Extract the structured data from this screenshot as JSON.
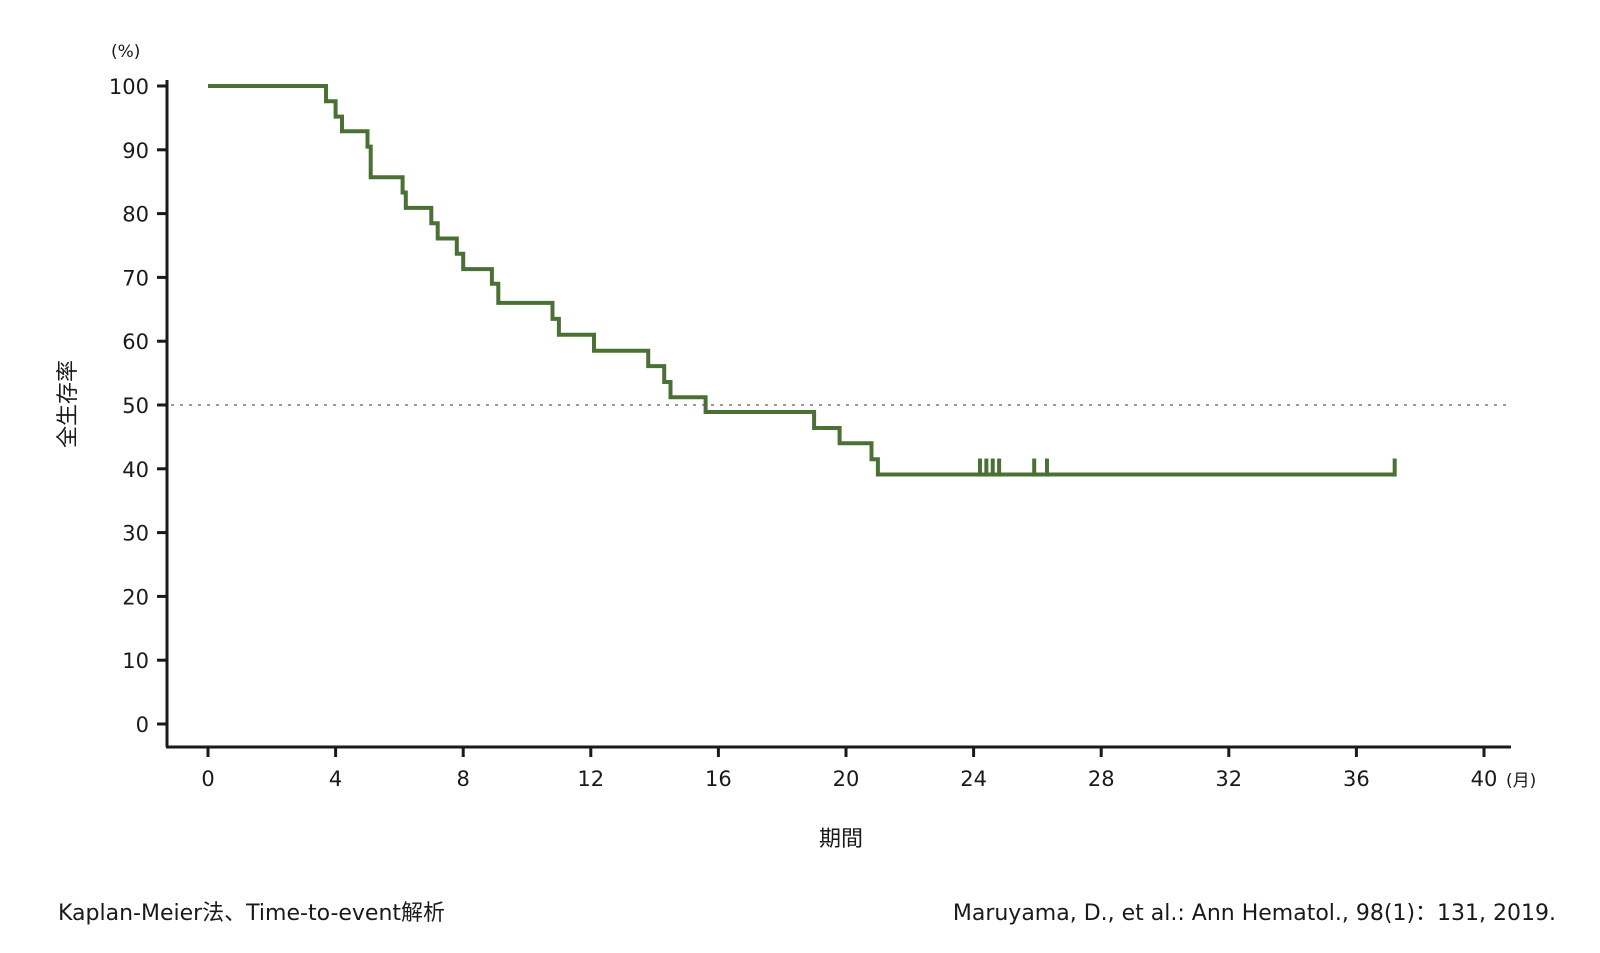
{
  "chart_data": {
    "type": "line",
    "step": true,
    "y_unit": "(%)",
    "x_unit": "(月)",
    "xlabel": "期間",
    "ylabel": "全生存率",
    "xlim": [
      0,
      40
    ],
    "ylim": [
      0,
      100
    ],
    "x_ticks": [
      0,
      4,
      8,
      12,
      16,
      20,
      24,
      28,
      32,
      36,
      40
    ],
    "y_ticks": [
      0,
      10,
      20,
      30,
      40,
      50,
      60,
      70,
      80,
      90,
      100
    ],
    "reference_line": {
      "y": 50,
      "style": "dotted",
      "color": "#9a9a9a"
    },
    "series": [
      {
        "color": "#4a7035",
        "points": [
          [
            0,
            100
          ],
          [
            3.7,
            100
          ],
          [
            3.7,
            97.6
          ],
          [
            4.0,
            97.6
          ],
          [
            4.0,
            95.2
          ],
          [
            4.2,
            95.2
          ],
          [
            4.2,
            92.9
          ],
          [
            5.0,
            92.9
          ],
          [
            5.0,
            90.5
          ],
          [
            5.1,
            90.5
          ],
          [
            5.1,
            85.7
          ],
          [
            6.1,
            85.7
          ],
          [
            6.1,
            83.3
          ],
          [
            6.2,
            83.3
          ],
          [
            6.2,
            80.9
          ],
          [
            7.0,
            80.9
          ],
          [
            7.0,
            78.5
          ],
          [
            7.2,
            78.5
          ],
          [
            7.2,
            76.1
          ],
          [
            7.8,
            76.1
          ],
          [
            7.8,
            73.7
          ],
          [
            8.0,
            73.7
          ],
          [
            8.0,
            71.3
          ],
          [
            8.9,
            71.3
          ],
          [
            8.9,
            69.0
          ],
          [
            9.1,
            69.0
          ],
          [
            9.1,
            66.0
          ],
          [
            10.8,
            66.0
          ],
          [
            10.8,
            63.5
          ],
          [
            11.0,
            63.5
          ],
          [
            11.0,
            61.0
          ],
          [
            12.1,
            61.0
          ],
          [
            12.1,
            58.5
          ],
          [
            13.8,
            58.5
          ],
          [
            13.8,
            56.1
          ],
          [
            14.3,
            56.1
          ],
          [
            14.3,
            53.6
          ],
          [
            14.5,
            53.6
          ],
          [
            14.5,
            51.2
          ],
          [
            15.6,
            51.2
          ],
          [
            15.6,
            48.9
          ],
          [
            19.0,
            48.9
          ],
          [
            19.0,
            46.4
          ],
          [
            19.8,
            46.4
          ],
          [
            19.8,
            44.0
          ],
          [
            20.8,
            44.0
          ],
          [
            20.8,
            41.5
          ],
          [
            21.0,
            41.5
          ],
          [
            21.0,
            39.1
          ],
          [
            37.2,
            39.1
          ]
        ],
        "censored": [
          24.2,
          24.4,
          24.6,
          24.8,
          25.9,
          26.3,
          37.2
        ]
      }
    ]
  },
  "footer": {
    "method": "Kaplan-Meier法、Time-to-event解析",
    "citation": "Maruyama, D., et al.: Ann Hematol., 98(1)：131, 2019."
  }
}
